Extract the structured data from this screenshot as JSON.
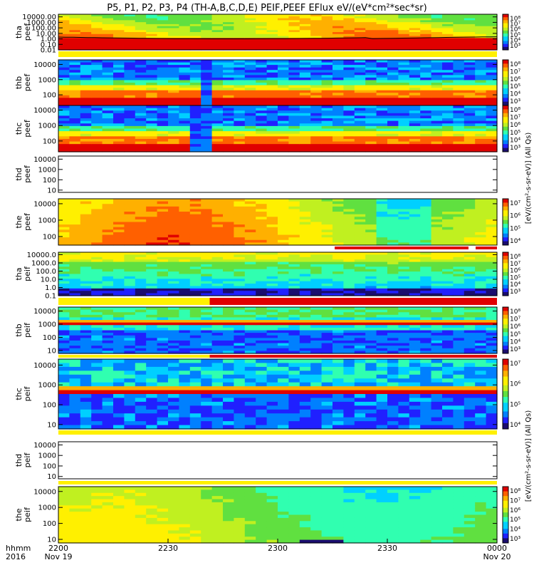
{
  "chart_data": {
    "type": "heatmap",
    "title": "P5, P1, P2, P3, P4 (TH-A,B,C,D,E) PEIF,PEEF EFlux eV/(eV*cm²*sec*sr)",
    "colorbar_unit_labels": [
      "[eV/(cm²-s-sr-eV)] (All Qs)",
      "[eV/(cm²-s-sr-eV)] (All Qs)"
    ],
    "x_axis": {
      "caption_top": "hhmm",
      "caption_bottom": "2016",
      "ticks": [
        {
          "t": 0,
          "label": "2200",
          "sub": "Nov 19"
        },
        {
          "t": 30,
          "label": "2230",
          "sub": ""
        },
        {
          "t": 60,
          "label": "2300",
          "sub": ""
        },
        {
          "t": 90,
          "label": "2330",
          "sub": ""
        },
        {
          "t": 120,
          "label": "0000",
          "sub": "Nov 20"
        }
      ],
      "range_minutes": [
        0,
        120
      ]
    },
    "panels": [
      {
        "id": "a-peef",
        "ylabel": [
          "tha",
          "peef"
        ],
        "yrange": [
          0.01,
          30000
        ],
        "yticks": [
          "10000.00",
          "1000.00",
          "100.00",
          "10.00",
          "1.00",
          "0.10",
          "0.01"
        ],
        "colorbar": true,
        "cbticks": [
          "10⁸",
          "10⁷",
          "10⁶",
          "10⁵",
          "10⁴",
          "10³"
        ],
        "bottom_bar": "yellow",
        "palette": "a-peef"
      },
      {
        "id": "b-peef",
        "ylabel": [
          "thb",
          "peef"
        ],
        "yrange": [
          20,
          20000
        ],
        "yticks": [
          "10000",
          "1000",
          "100"
        ],
        "colorbar": true,
        "cbticks": [
          "10⁸",
          "10⁷",
          "10⁶",
          "10⁵",
          "10⁴",
          "10³"
        ],
        "bottom_bar": "",
        "palette": "b-peef"
      },
      {
        "id": "c-peef",
        "ylabel": [
          "thc",
          "peef"
        ],
        "yrange": [
          20,
          20000
        ],
        "yticks": [
          "10000",
          "1000",
          "100"
        ],
        "colorbar": true,
        "cbticks": [
          "10⁸",
          "10⁷",
          "10⁶",
          "10⁵",
          "10⁴",
          "10³"
        ],
        "bottom_bar": "",
        "palette": "c-peef"
      },
      {
        "id": "d-peef",
        "ylabel": [
          "thd",
          "peef"
        ],
        "yrange": [
          6,
          20000
        ],
        "yticks": [
          "10000",
          "1000",
          "100",
          "10"
        ],
        "colorbar": false,
        "cbticks": [],
        "bottom_bar": "",
        "palette": "empty"
      },
      {
        "id": "e-peef",
        "ylabel": [
          "the",
          "peef"
        ],
        "yrange": [
          30,
          20000
        ],
        "yticks": [
          "10000",
          "1000",
          "100"
        ],
        "colorbar": true,
        "cbticks": [
          "10⁷",
          "10⁶",
          "10⁵",
          "10⁴"
        ],
        "bottom_bar": "red-partial",
        "palette": "e-peef"
      },
      {
        "id": "a-peif",
        "ylabel": [
          "tha",
          "peif"
        ],
        "yrange": [
          0.1,
          20000
        ],
        "yticks": [
          "10000.0",
          "1000.0",
          "100.0",
          "10.0",
          "1.0",
          "0.1"
        ],
        "colorbar": true,
        "cbticks": [
          "10⁸",
          "10⁷",
          "10⁶",
          "10⁵",
          "10⁴",
          "10³"
        ],
        "bottom_bar": "yellow-red",
        "palette": "a-peif"
      },
      {
        "id": "b-peif",
        "ylabel": [
          "thb",
          "peif"
        ],
        "yrange": [
          6,
          20000
        ],
        "yticks": [
          "10000",
          "1000",
          "100",
          "10"
        ],
        "colorbar": true,
        "cbticks": [
          "10⁸",
          "10⁷",
          "10⁶",
          "10⁵",
          "10⁴",
          "10³"
        ],
        "bottom_bar": "yellow-red",
        "palette": "b-peif"
      },
      {
        "id": "c-peif",
        "ylabel": [
          "thc",
          "peif"
        ],
        "yrange": [
          6,
          20000
        ],
        "yticks": [
          "10000",
          "1000",
          "100",
          "10"
        ],
        "colorbar": true,
        "cbticks": [
          "10⁷",
          "10⁶",
          "10⁵",
          "10⁴"
        ],
        "bottom_bar": "yellow",
        "palette": "c-peif"
      },
      {
        "id": "d-peif",
        "ylabel": [
          "thd",
          "peif"
        ],
        "yrange": [
          6,
          20000
        ],
        "yticks": [
          "10000",
          "1000",
          "100",
          "10"
        ],
        "colorbar": false,
        "cbticks": [],
        "bottom_bar": "yellow",
        "palette": "empty"
      },
      {
        "id": "e-peif",
        "ylabel": [
          "the",
          "peif"
        ],
        "yrange": [
          6,
          20000
        ],
        "yticks": [
          "10000",
          "1000",
          "100",
          "10"
        ],
        "colorbar": true,
        "cbticks": [
          "10⁸",
          "10⁷",
          "10⁶",
          "10⁵",
          "10⁴",
          "10³"
        ],
        "bottom_bar": "",
        "palette": "e-peif"
      }
    ],
    "colormap": [
      "#1a0d6e",
      "#2020ff",
      "#0080ff",
      "#00d0ff",
      "#30ffb0",
      "#60e040",
      "#c0f020",
      "#fff000",
      "#ffb000",
      "#ff6000",
      "#e00000"
    ],
    "red_top_colormap_low": "#000000"
  }
}
